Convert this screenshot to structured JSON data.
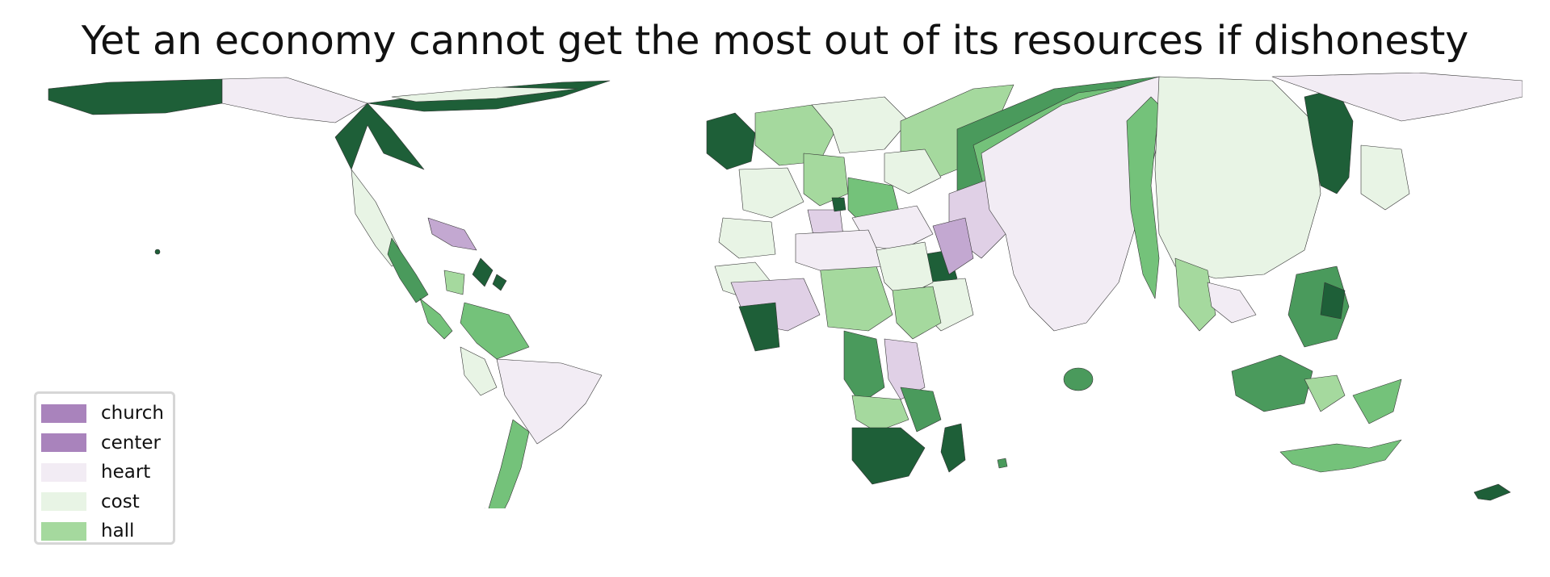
{
  "title": "Yet an economy cannot get the most out of its resources if dishonesty",
  "legend": {
    "items": [
      {
        "label": "church",
        "color": "#a983bc"
      },
      {
        "label": "center",
        "color": "#a983bc"
      },
      {
        "label": "heart",
        "color": "#f2ecf4"
      },
      {
        "label": "cost",
        "color": "#e8f4e5"
      },
      {
        "label": "hall",
        "color": "#a5d99e"
      }
    ]
  },
  "palette": {
    "dark_green": "#1e5f38",
    "mid_green": "#4a9a5c",
    "green": "#74c27a",
    "light_green": "#a5d99e",
    "pale_green": "#e8f4e5",
    "pale_purple": "#f2ecf4",
    "light_purple": "#e0d0e6",
    "purple": "#c3a8d1",
    "outline": "#333333"
  }
}
